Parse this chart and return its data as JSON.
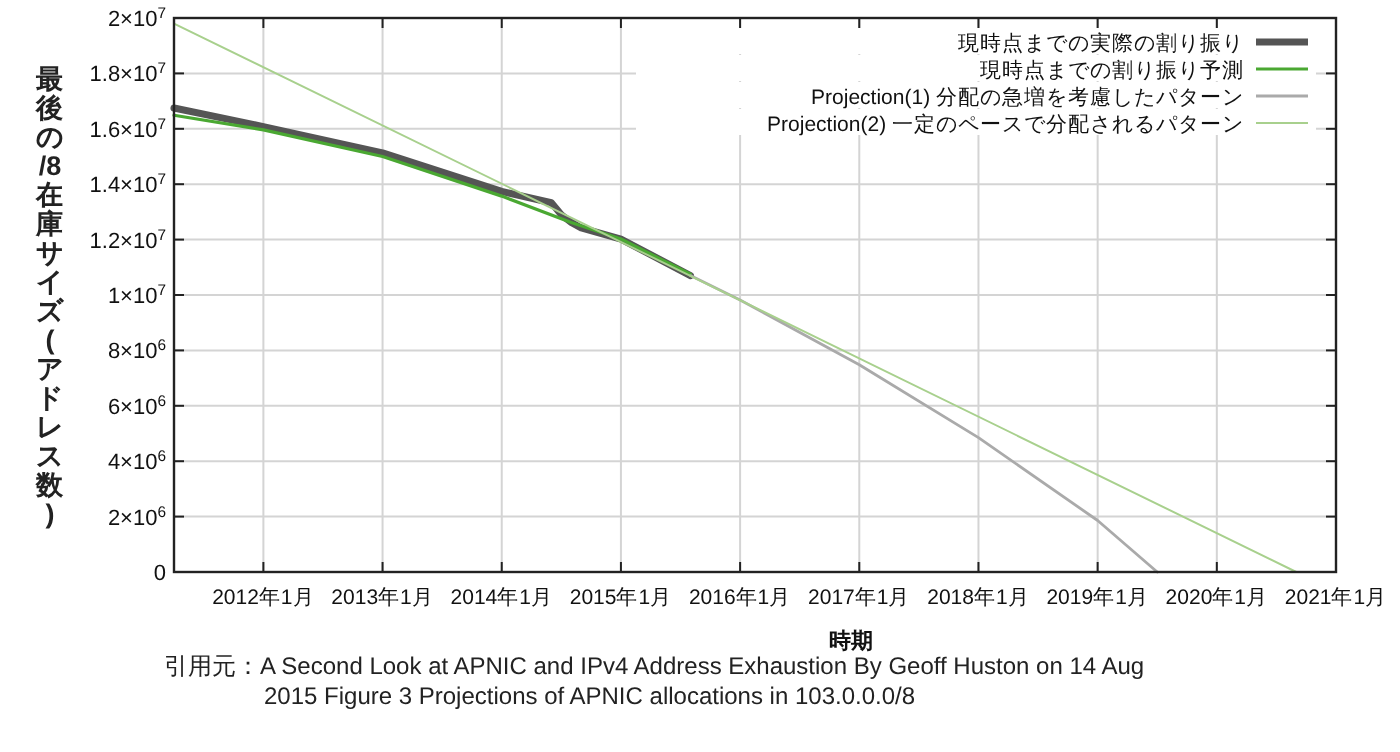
{
  "chart_data": {
    "type": "line",
    "ylabel": "最後の/8在庫サイズ(アドレス数)",
    "xlabel": "時期",
    "annotations": [
      "引用元：A Second Look at APNIC and IPv4 Address Exhaustion By Geoff Huston on 14 Aug 2015 Figure 3 Projections of APNIC allocations in 103.0.0.0/8"
    ],
    "xlim": [
      "2011-04",
      "2021-01"
    ],
    "ylim": [
      0,
      20000000
    ],
    "xticks": [
      {
        "value": "2012-01",
        "label": "2012年1月"
      },
      {
        "value": "2013-01",
        "label": "2013年1月"
      },
      {
        "value": "2014-01",
        "label": "2014年1月"
      },
      {
        "value": "2015-01",
        "label": "2015年1月"
      },
      {
        "value": "2016-01",
        "label": "2016年1月"
      },
      {
        "value": "2017-01",
        "label": "2017年1月"
      },
      {
        "value": "2018-01",
        "label": "2018年1月"
      },
      {
        "value": "2019-01",
        "label": "2019年1月"
      },
      {
        "value": "2020-01",
        "label": "2020年1月"
      },
      {
        "value": "2021-01",
        "label": "2021年1月"
      }
    ],
    "yticks": [
      0,
      {
        "value": 2000000,
        "label": "2×10$^{6}$"
      },
      {
        "value": 4000000,
        "label": "4×10$^{6}$"
      },
      {
        "value": 6000000,
        "label": "6×10$^{6}$"
      },
      {
        "value": 8000000,
        "label": "8×10$^{6}$"
      },
      {
        "value": 10000000,
        "label": "1×10$^{7}$"
      },
      {
        "value": 12000000,
        "label": "1.2×10$^{7}$"
      },
      {
        "value": 14000000,
        "label": "1.4×10$^{7}$"
      },
      {
        "value": 16000000,
        "label": "1.6×10$^{7}$"
      },
      {
        "value": 18000000,
        "label": "1.8×10$^{7}$"
      },
      {
        "value": 20000000,
        "label": "2×10$^{7}$"
      }
    ],
    "grid": true,
    "legend": "top right",
    "series": [
      {
        "name": "現時点までの実際の割り振り",
        "color": "#555555",
        "x": [
          "2011-04",
          "2012-01",
          "2013-01",
          "2014-01",
          "2014-06",
          "2014-07",
          "2014-08",
          "2014-09",
          "2015-01",
          "2015-08"
        ],
        "values": [
          16750000,
          16080000,
          15130000,
          13740000,
          13330000,
          12900000,
          12620000,
          12420000,
          12020000,
          10700000
        ]
      },
      {
        "name": "現時点までの割り振り予測",
        "color": "#4aa832",
        "x": [
          "2011-04",
          "2012-01",
          "2013-01",
          "2014-01",
          "2014-08",
          "2015-01",
          "2015-08"
        ],
        "values": [
          16490000,
          15960000,
          15000000,
          13570000,
          12620000,
          12020000,
          10750000
        ]
      },
      {
        "name": "Projection(1) 分配の急増を考慮したパターン",
        "color": "#aaaaaa",
        "x": [
          "2015-08",
          "2016-01",
          "2017-01",
          "2018-01",
          "2019-01",
          "2019-07"
        ],
        "values": [
          10700000,
          9820000,
          7480000,
          4850000,
          1860000,
          0
        ]
      },
      {
        "name": "Projection(2) 一定のペースで分配されるパターン",
        "color": "#a8d08d",
        "x": [
          "2011-04",
          "2020-09"
        ],
        "values": [
          19800000,
          0
        ]
      }
    ]
  }
}
